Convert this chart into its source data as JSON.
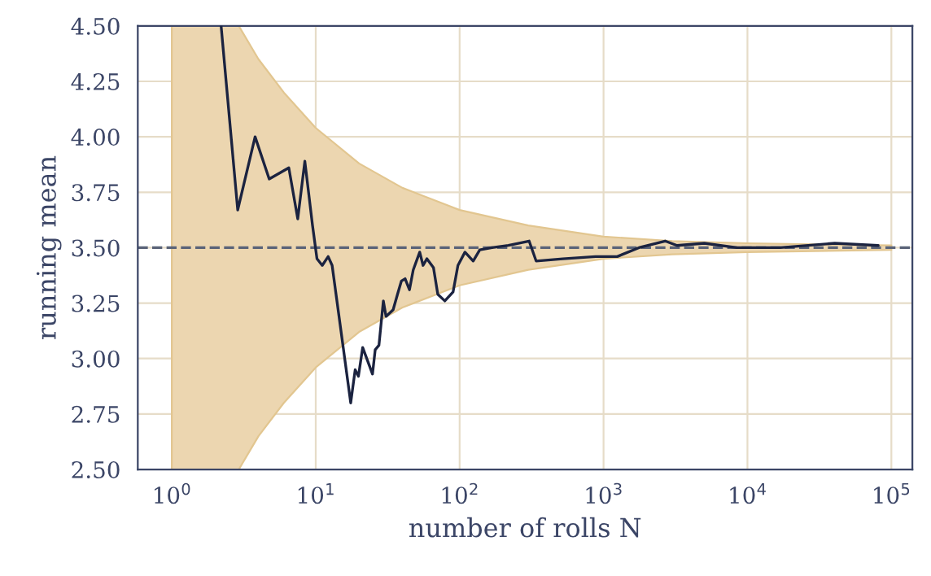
{
  "chart_data": {
    "type": "line",
    "xlabel": "number of rolls N",
    "ylabel": "running mean",
    "log": "x",
    "grid": true,
    "legend": false,
    "marker": "none",
    "line_style": "solid",
    "xlim": [
      0.58,
      140000
    ],
    "xticks": [
      {
        "value": 1,
        "label": "10$^{0}$"
      },
      {
        "value": 10,
        "label": "10$^{1}$"
      },
      {
        "value": 100,
        "label": "10$^{2}$"
      },
      {
        "value": 1000,
        "label": "10$^{3}$"
      },
      {
        "value": 10000,
        "label": "10$^{4}$"
      },
      {
        "value": 100000,
        "label": "10$^{5}$"
      }
    ],
    "ylim": [
      2.5,
      4.5
    ],
    "yticks": [
      {
        "value": 2.5,
        "label": "2.50"
      },
      {
        "value": 2.75,
        "label": "2.75"
      },
      {
        "value": 3.0,
        "label": "3.00"
      },
      {
        "value": 3.25,
        "label": "3.25"
      },
      {
        "value": 3.5,
        "label": "3.50"
      },
      {
        "value": 3.75,
        "label": "3.75"
      },
      {
        "value": 4.0,
        "label": "4.00"
      },
      {
        "value": 4.25,
        "label": "4.25"
      },
      {
        "value": 4.5,
        "label": "4.50"
      }
    ],
    "ref_lines": [
      {
        "axis": "y",
        "value": 3.5,
        "color": "#5a6378",
        "line_style": "dashed"
      }
    ],
    "series": [
      {
        "type": "area",
        "color": "#ecd6b0",
        "x": [
          1,
          2.92,
          4,
          6,
          10,
          20,
          40,
          100,
          300,
          1000,
          3000,
          10000,
          100000
        ],
        "values": [
          null,
          null,
          null,
          null,
          null,
          null,
          null,
          null,
          null,
          null,
          null,
          null,
          null
        ],
        "lower": [
          2.5,
          2.5,
          2.65,
          2.8,
          2.96,
          3.12,
          3.23,
          3.33,
          3.4,
          3.45,
          3.47,
          3.48,
          3.49
        ],
        "upper": [
          4.5,
          4.5,
          4.35,
          4.2,
          4.04,
          3.88,
          3.77,
          3.67,
          3.6,
          3.55,
          3.53,
          3.52,
          3.51
        ]
      },
      {
        "color": "#1b2340",
        "x": [
          2.2,
          2.87,
          3.79,
          4.75,
          6.5,
          7.5,
          8.4,
          9.5,
          10.2,
          11.1,
          12.2,
          13,
          17.5,
          18.8,
          19.8,
          21.2,
          24.8,
          25.9,
          27.5,
          29.5,
          30.8,
          34.5,
          37,
          39.4,
          41.8,
          44.8,
          47.6,
          52.8,
          55.7,
          59.2,
          65.8,
          70.5,
          78.9,
          90,
          97.3,
          108.9,
          124.2,
          138,
          168,
          218,
          304,
          340,
          521,
          879,
          1245,
          1762,
          2680,
          3243,
          5012,
          8433,
          16940,
          40460,
          81100
        ],
        "values": [
          4.5,
          3.67,
          4.0,
          3.81,
          3.86,
          3.63,
          3.89,
          3.6,
          3.45,
          3.42,
          3.46,
          3.42,
          2.8,
          2.95,
          2.92,
          3.05,
          2.93,
          3.04,
          3.06,
          3.26,
          3.19,
          3.22,
          3.29,
          3.35,
          3.36,
          3.31,
          3.4,
          3.48,
          3.42,
          3.45,
          3.41,
          3.29,
          3.26,
          3.3,
          3.42,
          3.48,
          3.44,
          3.49,
          3.5,
          3.51,
          3.53,
          3.44,
          3.45,
          3.46,
          3.46,
          3.5,
          3.53,
          3.51,
          3.52,
          3.5,
          3.5,
          3.52,
          3.51
        ]
      }
    ]
  }
}
